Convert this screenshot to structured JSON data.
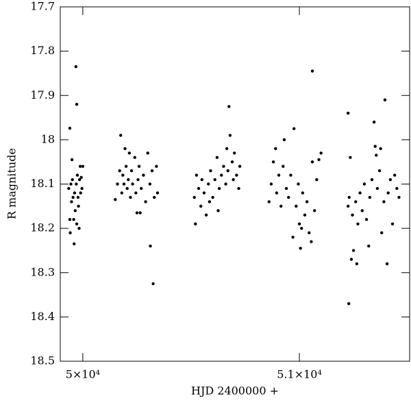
{
  "chart_data": {
    "type": "scatter",
    "xlabel": "HJD 2400000 +",
    "ylabel": "R magnitude",
    "xlim": [
      49896,
      51509
    ],
    "ylim": [
      17.7,
      18.5
    ],
    "y_inverted": true,
    "xticks": [
      {
        "value": 50000,
        "label": "5×10⁴"
      },
      {
        "value": 51000,
        "label": "5.1×10⁴"
      }
    ],
    "yticks": [
      17.7,
      17.8,
      17.9,
      18,
      18.1,
      18.2,
      18.3,
      18.4,
      18.5
    ],
    "color": "#000000",
    "x": [
      49935,
      49940,
      49942,
      49945,
      49948,
      49950,
      49952,
      49955,
      49958,
      49960,
      49962,
      49965,
      49968,
      49970,
      49972,
      49975,
      49978,
      49980,
      49983,
      49985,
      49988,
      49990,
      49993,
      49996,
      50000,
      49972,
      49940,
      50150,
      50160,
      50170,
      50175,
      50180,
      50185,
      50190,
      50195,
      50200,
      50205,
      50210,
      50215,
      50220,
      50225,
      50230,
      50240,
      50245,
      50250,
      50255,
      50260,
      50270,
      50280,
      50290,
      50300,
      50310,
      50320,
      50330,
      50340,
      50345,
      50312,
      50325,
      50265,
      50515,
      50520,
      50525,
      50535,
      50545,
      50550,
      50560,
      50570,
      50580,
      50590,
      50600,
      50610,
      50620,
      50630,
      50640,
      50650,
      50660,
      50665,
      50670,
      50680,
      50690,
      50695,
      50700,
      50710,
      50720,
      50725,
      50675,
      50585,
      50625,
      50860,
      50870,
      50880,
      50890,
      50895,
      50905,
      50915,
      50925,
      50930,
      50940,
      50950,
      50960,
      50970,
      50975,
      50985,
      50995,
      51000,
      51005,
      51015,
      51025,
      51035,
      51045,
      51055,
      51060,
      51070,
      51080,
      51090,
      51100,
      51060,
      51010,
      51225,
      51230,
      51235,
      51240,
      51245,
      51250,
      51260,
      51265,
      51270,
      51280,
      51290,
      51300,
      51310,
      51320,
      51325,
      51335,
      51345,
      51350,
      51360,
      51370,
      51380,
      51390,
      51395,
      51405,
      51410,
      51420,
      51430,
      51440,
      51450,
      51460,
      51228,
      51225,
      51355,
      51375
    ],
    "y": [
      18.11,
      18.18,
      18.21,
      18.1,
      18.14,
      18.045,
      18.09,
      18.13,
      18.18,
      18.235,
      18.12,
      18.16,
      17.835,
      18.1,
      18.19,
      18.08,
      18.13,
      18.15,
      18.2,
      18.09,
      18.06,
      18.12,
      18.085,
      18.11,
      18.06,
      17.92,
      17.974,
      18.135,
      18.1,
      18.07,
      17.99,
      18.12,
      18.08,
      18.1,
      18.02,
      18.06,
      18.11,
      18.09,
      18.03,
      18.13,
      18.07,
      18.1,
      18.04,
      18.12,
      18.165,
      18.09,
      18.06,
      18.11,
      18.08,
      18.14,
      18.03,
      18.1,
      18.07,
      18.13,
      18.06,
      18.12,
      18.24,
      18.325,
      18.165,
      18.13,
      18.19,
      18.08,
      18.11,
      18.15,
      18.09,
      18.12,
      18.17,
      18.1,
      18.07,
      18.13,
      18.09,
      18.04,
      18.11,
      18.08,
      18.06,
      18.1,
      18.02,
      18.07,
      17.99,
      18.05,
      18.09,
      18.03,
      18.08,
      18.11,
      18.06,
      17.925,
      18.14,
      18.16,
      18.14,
      18.1,
      18.05,
      18.02,
      18.12,
      18.08,
      18.15,
      18.06,
      18.0,
      18.11,
      18.13,
      18.08,
      18.22,
      17.975,
      18.15,
      18.1,
      18.19,
      18.245,
      18.12,
      18.17,
      18.14,
      18.21,
      18.23,
      18.05,
      18.16,
      18.09,
      18.045,
      18.03,
      17.845,
      18.2,
      18.15,
      18.13,
      18.04,
      18.27,
      18.17,
      18.25,
      18.14,
      18.28,
      18.19,
      18.12,
      18.16,
      18.1,
      18.18,
      18.24,
      18.13,
      18.09,
      17.96,
      18.015,
      18.11,
      18.07,
      18.21,
      18.14,
      17.91,
      18.28,
      18.12,
      18.09,
      18.19,
      18.08,
      18.11,
      18.13,
      18.37,
      17.94,
      18.035,
      18.02
    ]
  }
}
